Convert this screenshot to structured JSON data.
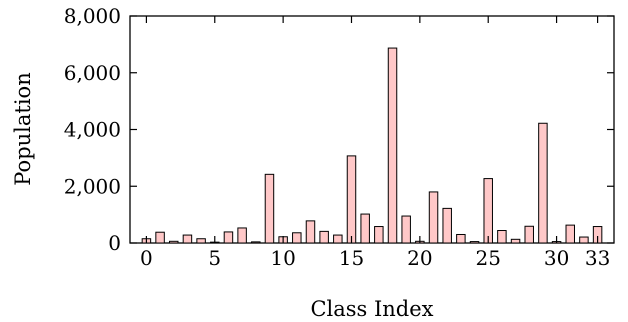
{
  "chart_data": {
    "type": "bar",
    "x": [
      0,
      1,
      2,
      3,
      4,
      5,
      6,
      7,
      8,
      9,
      10,
      11,
      12,
      13,
      14,
      15,
      16,
      17,
      18,
      19,
      20,
      21,
      22,
      23,
      24,
      25,
      26,
      27,
      28,
      29,
      30,
      31,
      32,
      33
    ],
    "values": [
      150,
      380,
      60,
      280,
      150,
      30,
      390,
      530,
      40,
      2420,
      220,
      360,
      780,
      410,
      280,
      3070,
      1020,
      580,
      6870,
      950,
      60,
      1800,
      1220,
      300,
      50,
      2270,
      440,
      130,
      590,
      4220,
      50,
      630,
      210,
      580
    ],
    "xlabel": "Class Index",
    "ylabel": "Population",
    "xticks": [
      0,
      5,
      10,
      15,
      20,
      25,
      30,
      33
    ],
    "xtick_labels": [
      "0",
      "5",
      "10",
      "15",
      "20",
      "25",
      "30",
      "33"
    ],
    "yticks": [
      0,
      2000,
      4000,
      6000,
      8000
    ],
    "ytick_labels": [
      "0",
      "2,000",
      "4,000",
      "6,000",
      "8,000"
    ],
    "ylim": [
      0,
      8000
    ],
    "xlim": [
      -1.2,
      34.2
    ],
    "bar_color": "#ffc8c8",
    "edge_color": "#000000",
    "grid": false,
    "legend": "none"
  }
}
